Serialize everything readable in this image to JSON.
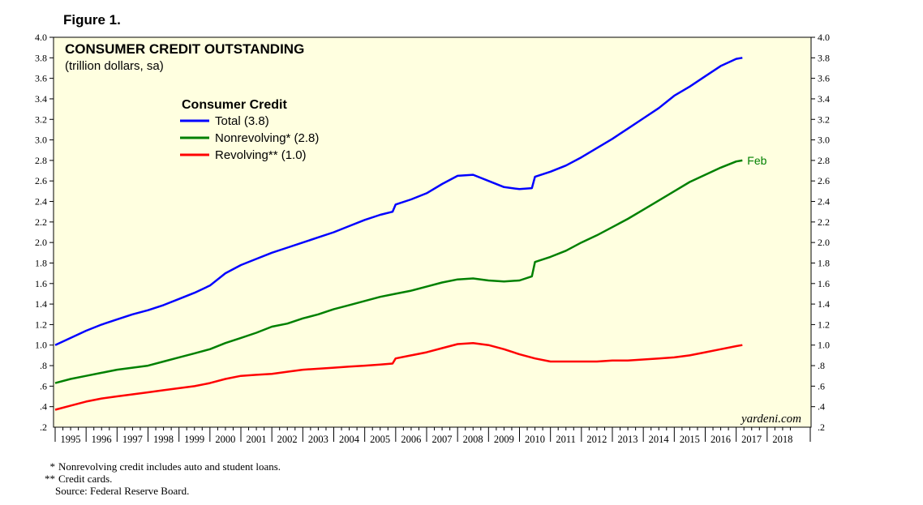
{
  "figure_label": "Figure 1.",
  "watermark": "yardeni.com",
  "notes": [
    {
      "mark": "*",
      "text": "Nonrevolving credit includes auto and student loans."
    },
    {
      "mark": "**",
      "text": "Credit cards."
    }
  ],
  "source": "Source: Federal Reserve Board.",
  "colors": {
    "plot_background": "#ffffe0",
    "total": "#0000ff",
    "nonrevolving": "#008000",
    "revolving": "#ff0000",
    "annotation": "#008000"
  },
  "chart_data": {
    "type": "line",
    "title": "CONSUMER CREDIT OUTSTANDING",
    "subtitle": "(trillion dollars, sa)",
    "legend_title": "Consumer Credit",
    "legend_position": "top-left",
    "grid": false,
    "end_annotation": "Feb",
    "ylim": [
      0.2,
      4.0
    ],
    "xlim": [
      1995.0,
      2018.5
    ],
    "y_ticks": [
      0.4,
      0.6,
      0.8,
      1.0,
      1.2,
      1.4,
      1.6,
      1.8,
      2.0,
      2.2,
      2.4,
      2.6,
      2.8,
      3.0,
      3.2,
      3.4,
      3.6,
      3.8,
      4.0
    ],
    "y_tick_labels": [
      ".4",
      ".6",
      ".8",
      "1.0",
      "1.2",
      "1.4",
      "1.6",
      "1.8",
      "2.0",
      "2.2",
      "2.4",
      "2.6",
      "2.8",
      "3.0",
      "3.2",
      "3.4",
      "3.6",
      "3.8",
      "4.0"
    ],
    "y_bottom_label": ".2",
    "x_tick_labels": [
      "1995",
      "1996",
      "1997",
      "1998",
      "1999",
      "2000",
      "2001",
      "2002",
      "2003",
      "2004",
      "2005",
      "2006",
      "2007",
      "2008",
      "2009",
      "2010",
      "2011",
      "2012",
      "2013",
      "2014",
      "2015",
      "2016",
      "2017",
      "2018"
    ],
    "series": [
      {
        "name": "Total",
        "legend_label": "Total (3.8)",
        "color_key": "total",
        "x": [
          1995.0,
          1995.5,
          1996.0,
          1996.5,
          1997.0,
          1997.5,
          1998.0,
          1998.5,
          1999.0,
          1999.5,
          2000.0,
          2000.5,
          2001.0,
          2001.5,
          2002.0,
          2002.5,
          2003.0,
          2003.5,
          2004.0,
          2004.5,
          2005.0,
          2005.5,
          2005.9,
          2006.0,
          2006.5,
          2007.0,
          2007.5,
          2008.0,
          2008.5,
          2009.0,
          2009.5,
          2010.0,
          2010.4,
          2010.5,
          2011.0,
          2011.5,
          2012.0,
          2012.5,
          2013.0,
          2013.5,
          2014.0,
          2014.5,
          2015.0,
          2015.5,
          2016.0,
          2016.5,
          2017.0,
          2017.2
        ],
        "values": [
          1.0,
          1.07,
          1.14,
          1.2,
          1.25,
          1.3,
          1.34,
          1.39,
          1.45,
          1.51,
          1.58,
          1.7,
          1.78,
          1.84,
          1.9,
          1.95,
          2.0,
          2.05,
          2.1,
          2.16,
          2.22,
          2.27,
          2.3,
          2.37,
          2.42,
          2.48,
          2.57,
          2.65,
          2.66,
          2.6,
          2.54,
          2.52,
          2.53,
          2.64,
          2.69,
          2.75,
          2.83,
          2.92,
          3.01,
          3.11,
          3.21,
          3.31,
          3.43,
          3.52,
          3.62,
          3.72,
          3.79,
          3.8
        ]
      },
      {
        "name": "Nonrevolving",
        "legend_label": "Nonrevolving* (2.8)",
        "color_key": "nonrevolving",
        "x": [
          1995.0,
          1995.5,
          1996.0,
          1996.5,
          1997.0,
          1997.5,
          1998.0,
          1998.5,
          1999.0,
          1999.5,
          2000.0,
          2000.5,
          2001.0,
          2001.5,
          2002.0,
          2002.5,
          2003.0,
          2003.5,
          2004.0,
          2004.5,
          2005.0,
          2005.5,
          2006.0,
          2006.5,
          2007.0,
          2007.5,
          2008.0,
          2008.5,
          2009.0,
          2009.5,
          2010.0,
          2010.4,
          2010.5,
          2011.0,
          2011.5,
          2012.0,
          2012.5,
          2013.0,
          2013.5,
          2014.0,
          2014.5,
          2015.0,
          2015.5,
          2016.0,
          2016.5,
          2017.0,
          2017.2
        ],
        "values": [
          0.63,
          0.67,
          0.7,
          0.73,
          0.76,
          0.78,
          0.8,
          0.84,
          0.88,
          0.92,
          0.96,
          1.02,
          1.07,
          1.12,
          1.18,
          1.21,
          1.26,
          1.3,
          1.35,
          1.39,
          1.43,
          1.47,
          1.5,
          1.53,
          1.57,
          1.61,
          1.64,
          1.65,
          1.63,
          1.62,
          1.63,
          1.67,
          1.81,
          1.86,
          1.92,
          2.0,
          2.07,
          2.15,
          2.23,
          2.32,
          2.41,
          2.5,
          2.59,
          2.66,
          2.73,
          2.79,
          2.8
        ]
      },
      {
        "name": "Revolving",
        "legend_label": "Revolving** (1.0)",
        "color_key": "revolving",
        "x": [
          1995.0,
          1995.5,
          1996.0,
          1996.5,
          1997.0,
          1997.5,
          1998.0,
          1998.5,
          1999.0,
          1999.5,
          2000.0,
          2000.5,
          2001.0,
          2001.5,
          2002.0,
          2002.5,
          2003.0,
          2003.5,
          2004.0,
          2004.5,
          2005.0,
          2005.5,
          2005.9,
          2006.0,
          2006.5,
          2007.0,
          2007.5,
          2008.0,
          2008.5,
          2009.0,
          2009.5,
          2010.0,
          2010.5,
          2011.0,
          2011.5,
          2012.0,
          2012.5,
          2013.0,
          2013.5,
          2014.0,
          2014.5,
          2015.0,
          2015.5,
          2016.0,
          2016.5,
          2017.0,
          2017.2
        ],
        "values": [
          0.37,
          0.41,
          0.45,
          0.48,
          0.5,
          0.52,
          0.54,
          0.56,
          0.58,
          0.6,
          0.63,
          0.67,
          0.7,
          0.71,
          0.72,
          0.74,
          0.76,
          0.77,
          0.78,
          0.79,
          0.8,
          0.81,
          0.82,
          0.87,
          0.9,
          0.93,
          0.97,
          1.01,
          1.02,
          1.0,
          0.96,
          0.91,
          0.87,
          0.84,
          0.84,
          0.84,
          0.84,
          0.85,
          0.85,
          0.86,
          0.87,
          0.88,
          0.9,
          0.93,
          0.96,
          0.99,
          1.0
        ]
      }
    ]
  }
}
